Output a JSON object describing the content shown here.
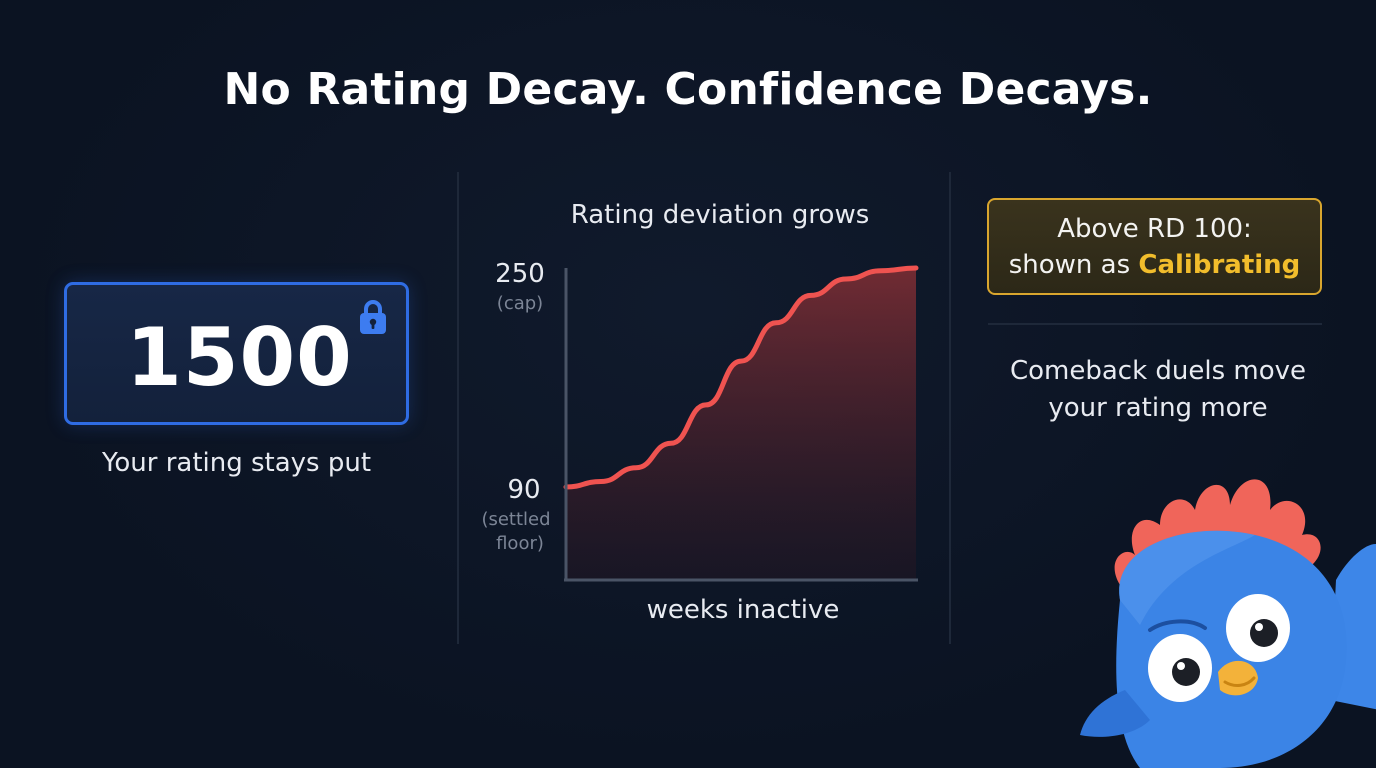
{
  "header": {
    "title": "No Rating Decay. Confidence Decays."
  },
  "rating_panel": {
    "value": "1500",
    "lock_icon": "lock-icon",
    "caption": "Your rating stays put",
    "accent_color": "#2f6ce3"
  },
  "chart": {
    "title": "Rating deviation grows",
    "y_top_label": "250",
    "y_top_sub": "(cap)",
    "y_bottom_label": "90",
    "y_bottom_sub_1": "(settled",
    "y_bottom_sub_2": "floor)",
    "x_label": "weeks inactive"
  },
  "chart_data": {
    "type": "area",
    "title": "Rating deviation grows",
    "xlabel": "weeks inactive",
    "ylabel": "",
    "ylim": [
      90,
      250
    ],
    "y_ticks": [
      {
        "value": 90,
        "label": "90",
        "note": "(settled floor)"
      },
      {
        "value": 250,
        "label": "250",
        "note": "(cap)"
      }
    ],
    "series": [
      {
        "x": [
          0,
          1,
          2,
          3,
          4,
          5,
          6,
          7,
          8,
          9,
          10
        ],
        "values": [
          90,
          94,
          104,
          122,
          150,
          182,
          210,
          230,
          242,
          248,
          250
        ]
      }
    ],
    "line_color": "#ef5350",
    "grid": false
  },
  "calibration": {
    "line1": "Above RD 100:",
    "line2_prefix": "shown as ",
    "line2_accent": "Calibrating",
    "accent_color": "#f1bd2c"
  },
  "comeback": {
    "line1": "Comeback duels move",
    "line2": "your rating more"
  },
  "mascot": {
    "icon": "bird-mascot-icon"
  }
}
